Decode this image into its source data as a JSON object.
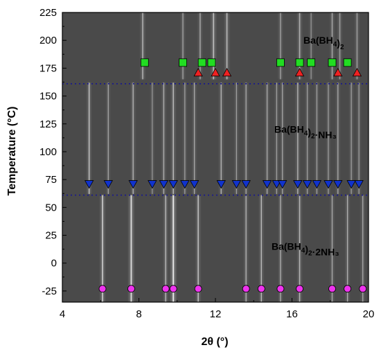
{
  "chart_data": {
    "type": "heatmap",
    "xlabel": "2θ (°)",
    "ylabel": "Temperature (°C)",
    "xlim": [
      4,
      20
    ],
    "ylim": [
      -35,
      225
    ],
    "xticks": [
      "4",
      "8",
      "12",
      "16",
      "20"
    ],
    "yticks": [
      "-25",
      "0",
      "25",
      "50",
      "75",
      "100",
      "125",
      "150",
      "175",
      "200",
      "225"
    ],
    "grid": false,
    "background": "#4a4a4a",
    "phase_boundaries": [
      {
        "temperature": 61,
        "color": "#1a1a8c",
        "style": "dotted"
      },
      {
        "temperature": 161,
        "color": "#1a1a8c",
        "style": "dotted"
      }
    ],
    "phase_labels": [
      {
        "text": "Ba(BH4)2",
        "base": "Ba(BH",
        "sub1": "4",
        "rest": ")",
        "sub2": "2",
        "tail": ""
      },
      {
        "text": "Ba(BH4)2·NH3",
        "base": "Ba(BH",
        "sub1": "4",
        "rest": ")",
        "sub2": "2",
        "tail": "·NH₃"
      },
      {
        "text": "Ba(BH4)2·2NH3",
        "base": "Ba(BH",
        "sub1": "4",
        "rest": ")",
        "sub2": "2",
        "tail": "·2NH₃"
      }
    ],
    "series": [
      {
        "marker": "square",
        "color": "#22dd22",
        "y": 180,
        "x": [
          8.3,
          10.3,
          11.3,
          11.8,
          15.4,
          16.4,
          17.0,
          18.1,
          18.9
        ]
      },
      {
        "marker": "triangle-up",
        "color": "#ee2222",
        "y": 171,
        "x": [
          11.1,
          12.0,
          12.6,
          16.4,
          18.4,
          19.4
        ]
      },
      {
        "marker": "triangle-down",
        "color": "#1133cc",
        "y": 71,
        "x": [
          5.4,
          6.4,
          7.7,
          8.7,
          9.3,
          9.8,
          10.4,
          10.9,
          12.3,
          13.1,
          13.6,
          14.7,
          15.2,
          15.5,
          16.3,
          16.8,
          17.3,
          17.9,
          18.4,
          19.1,
          19.5
        ]
      },
      {
        "marker": "circle",
        "color": "#ee33ee",
        "y": -23,
        "x": [
          6.1,
          7.6,
          9.4,
          9.8,
          11.1,
          13.6,
          14.4,
          15.4,
          16.4,
          18.1,
          18.9,
          19.7
        ]
      }
    ],
    "diffraction_lines": [
      {
        "x": 8.2,
        "t0": 165,
        "t1": 225,
        "strength": 0.55,
        "width": 1.6
      },
      {
        "x": 10.3,
        "t0": 165,
        "t1": 225,
        "strength": 0.45,
        "width": 1.4
      },
      {
        "x": 11.2,
        "t0": 165,
        "t1": 225,
        "strength": 0.5,
        "width": 1.4
      },
      {
        "x": 11.9,
        "t0": 165,
        "t1": 225,
        "strength": 0.6,
        "width": 1.8
      },
      {
        "x": 12.6,
        "t0": 165,
        "t1": 225,
        "strength": 0.6,
        "width": 1.6
      },
      {
        "x": 15.4,
        "t0": 165,
        "t1": 225,
        "strength": 0.45,
        "width": 1.4
      },
      {
        "x": 16.4,
        "t0": 165,
        "t1": 225,
        "strength": 0.55,
        "width": 1.6
      },
      {
        "x": 17.0,
        "t0": 165,
        "t1": 225,
        "strength": 0.4,
        "width": 1.2
      },
      {
        "x": 18.1,
        "t0": 165,
        "t1": 225,
        "strength": 0.5,
        "width": 1.4
      },
      {
        "x": 18.5,
        "t0": 165,
        "t1": 225,
        "strength": 0.45,
        "width": 1.4
      },
      {
        "x": 19.4,
        "t0": 165,
        "t1": 225,
        "strength": 0.45,
        "width": 1.4
      },
      {
        "x": 5.4,
        "t0": 62,
        "t1": 162,
        "strength": 0.65,
        "width": 1.4
      },
      {
        "x": 6.4,
        "t0": 62,
        "t1": 162,
        "strength": 0.5,
        "width": 1.2
      },
      {
        "x": 7.7,
        "t0": 62,
        "t1": 162,
        "strength": 0.55,
        "width": 1.4
      },
      {
        "x": 8.7,
        "t0": 62,
        "t1": 162,
        "strength": 0.4,
        "width": 1.2
      },
      {
        "x": 9.3,
        "t0": 62,
        "t1": 162,
        "strength": 0.55,
        "width": 1.3
      },
      {
        "x": 9.8,
        "t0": 62,
        "t1": 162,
        "strength": 0.6,
        "width": 1.5
      },
      {
        "x": 10.4,
        "t0": 62,
        "t1": 162,
        "strength": 0.45,
        "width": 1.2
      },
      {
        "x": 10.9,
        "t0": 62,
        "t1": 162,
        "strength": 0.5,
        "width": 1.3
      },
      {
        "x": 12.3,
        "t0": 62,
        "t1": 162,
        "strength": 0.55,
        "width": 1.4
      },
      {
        "x": 13.1,
        "t0": 62,
        "t1": 162,
        "strength": 0.45,
        "width": 1.2
      },
      {
        "x": 13.6,
        "t0": 62,
        "t1": 162,
        "strength": 0.5,
        "width": 1.3
      },
      {
        "x": 14.7,
        "t0": 62,
        "t1": 162,
        "strength": 0.5,
        "width": 1.3
      },
      {
        "x": 15.2,
        "t0": 62,
        "t1": 162,
        "strength": 0.45,
        "width": 1.2
      },
      {
        "x": 15.5,
        "t0": 62,
        "t1": 162,
        "strength": 0.5,
        "width": 1.2
      },
      {
        "x": 16.3,
        "t0": 62,
        "t1": 162,
        "strength": 0.55,
        "width": 1.4
      },
      {
        "x": 16.8,
        "t0": 62,
        "t1": 162,
        "strength": 0.45,
        "width": 1.2
      },
      {
        "x": 17.3,
        "t0": 62,
        "t1": 162,
        "strength": 0.45,
        "width": 1.2
      },
      {
        "x": 17.9,
        "t0": 62,
        "t1": 162,
        "strength": 0.45,
        "width": 1.2
      },
      {
        "x": 18.4,
        "t0": 62,
        "t1": 162,
        "strength": 0.5,
        "width": 1.3
      },
      {
        "x": 19.1,
        "t0": 62,
        "t1": 162,
        "strength": 0.45,
        "width": 1.2
      },
      {
        "x": 19.5,
        "t0": 62,
        "t1": 162,
        "strength": 0.45,
        "width": 1.2
      },
      {
        "x": 6.1,
        "t0": -35,
        "t1": 61,
        "strength": 0.75,
        "width": 1.6
      },
      {
        "x": 7.6,
        "t0": -35,
        "t1": 61,
        "strength": 0.85,
        "width": 1.8
      },
      {
        "x": 9.4,
        "t0": -35,
        "t1": 61,
        "strength": 0.6,
        "width": 1.4
      },
      {
        "x": 9.8,
        "t0": -35,
        "t1": 61,
        "strength": 0.9,
        "width": 2.0
      },
      {
        "x": 11.1,
        "t0": -35,
        "t1": 61,
        "strength": 0.65,
        "width": 1.5
      },
      {
        "x": 13.6,
        "t0": -35,
        "t1": 61,
        "strength": 0.55,
        "width": 1.4
      },
      {
        "x": 14.4,
        "t0": -35,
        "t1": 61,
        "strength": 0.6,
        "width": 1.4
      },
      {
        "x": 15.4,
        "t0": -35,
        "t1": 61,
        "strength": 0.55,
        "width": 1.3
      },
      {
        "x": 16.4,
        "t0": -35,
        "t1": 61,
        "strength": 0.6,
        "width": 1.4
      },
      {
        "x": 18.1,
        "t0": -35,
        "t1": 61,
        "strength": 0.5,
        "width": 1.3
      },
      {
        "x": 18.9,
        "t0": -35,
        "t1": 61,
        "strength": 0.55,
        "width": 1.3
      },
      {
        "x": 19.7,
        "t0": -35,
        "t1": 61,
        "strength": 0.5,
        "width": 1.3
      }
    ]
  }
}
